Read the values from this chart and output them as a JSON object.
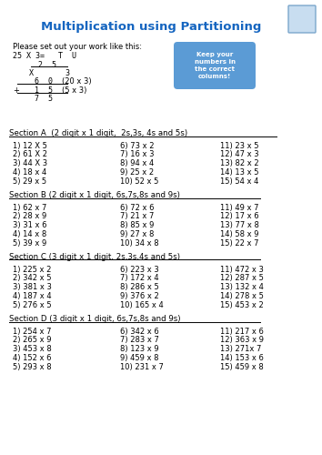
{
  "title": "Multiplication using Partitioning",
  "title_color": "#1565C0",
  "bg_color": "#ffffff",
  "box_text": "Keep your\nnumbers in\nthe correct\ncolumns!",
  "box_color": "#5B9BD5",
  "sections": [
    {
      "title": "Section A  (2 digit x 1 digit,  2s,3s, 4s and 5s)",
      "col1": [
        "1) 12 X 5",
        "2) 61 X 2",
        "3) 44 X 3",
        "4) 18 x 4",
        "5) 29 x 5"
      ],
      "col2": [
        "6) 73 x 2",
        "7) 16 x 3",
        "8) 94 x 4",
        "9) 25 x 2",
        "10) 52 x 5"
      ],
      "col3": [
        "11) 23 x 5",
        "12) 47 x 3",
        "13) 82 x 2",
        "14) 13 x 5",
        "15) 54 x 4"
      ]
    },
    {
      "title": "Section B (2 digit x 1 digit, 6s,7s,8s and 9s)",
      "col1": [
        "1) 62 x 7",
        "2) 28 x 9",
        "3) 31 x 6",
        "4) 14 x 8",
        "5) 39 x 9"
      ],
      "col2": [
        "6) 72 x 6",
        "7) 21 x 7",
        "8) 85 x 9",
        "9) 27 x 8",
        "10) 34 x 8"
      ],
      "col3": [
        "11) 49 x 7",
        "12) 17 x 6",
        "13) 77 x 8",
        "14) 58 x 9",
        "15) 22 x 7"
      ]
    },
    {
      "title": "Section C (3 digit x 1 digit, 2s,3s,4s and 5s)",
      "col1": [
        "1) 225 x 2",
        "2) 342 x 5",
        "3) 381 x 3",
        "4) 187 x 4",
        "5) 276 x 5"
      ],
      "col2": [
        "6) 223 x 3",
        "7) 172 x 4",
        "8) 286 x 5",
        "9) 376 x 2",
        "10) 165 x 4"
      ],
      "col3": [
        "11) 472 x 3",
        "12) 287 x 5",
        "13) 132 x 4",
        "14) 278 x 5",
        "15) 453 x 2"
      ]
    },
    {
      "title": "Section D (3 digit x 1 digit, 6s,7s,8s and 9s)",
      "col1": [
        "1) 254 x 7",
        "2) 265 x 9",
        "3) 453 x 8",
        "4) 152 x 6",
        "5) 293 x 8"
      ],
      "col2": [
        "6) 342 x 6",
        "7) 283 x 7",
        "8) 123 x 9",
        "9) 459 x 8",
        "10) 231 x 7"
      ],
      "col3": [
        "11) 217 x 6",
        "12) 363 x 9",
        "13) 271x 7",
        "14) 153 x 6",
        "15) 459 x 8"
      ]
    }
  ]
}
